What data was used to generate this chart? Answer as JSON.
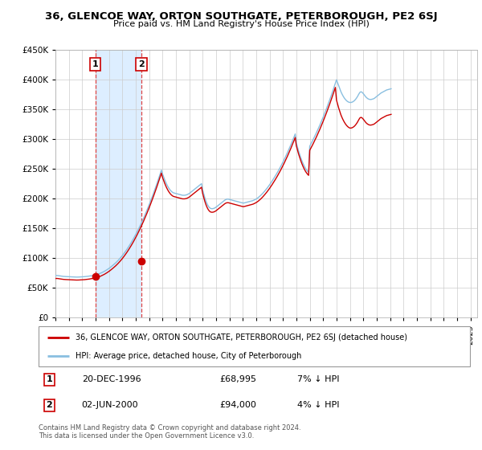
{
  "title": "36, GLENCOE WAY, ORTON SOUTHGATE, PETERBOROUGH, PE2 6SJ",
  "subtitle": "Price paid vs. HM Land Registry's House Price Index (HPI)",
  "legend_line1": "36, GLENCOE WAY, ORTON SOUTHGATE, PETERBOROUGH, PE2 6SJ (detached house)",
  "legend_line2": "HPI: Average price, detached house, City of Peterborough",
  "footer": "Contains HM Land Registry data © Crown copyright and database right 2024.\nThis data is licensed under the Open Government Licence v3.0.",
  "transaction1_date": "20-DEC-1996",
  "transaction1_price": "£68,995",
  "transaction1_hpi": "7% ↓ HPI",
  "transaction2_date": "02-JUN-2000",
  "transaction2_price": "£94,000",
  "transaction2_hpi": "4% ↓ HPI",
  "hpi_color": "#89bfe0",
  "price_color": "#cc0000",
  "marker_color": "#cc0000",
  "transaction1_x": 1996.97,
  "transaction1_y": 68995,
  "transaction2_x": 2000.42,
  "transaction2_y": 94000,
  "xlim": [
    1994.0,
    2025.5
  ],
  "ylim": [
    0,
    450000
  ],
  "yticks": [
    0,
    50000,
    100000,
    150000,
    200000,
    250000,
    300000,
    350000,
    400000,
    450000
  ],
  "xticks": [
    1994,
    1995,
    1996,
    1997,
    1998,
    1999,
    2000,
    2001,
    2002,
    2003,
    2004,
    2005,
    2006,
    2007,
    2008,
    2009,
    2010,
    2011,
    2012,
    2013,
    2014,
    2015,
    2016,
    2017,
    2018,
    2019,
    2020,
    2021,
    2022,
    2023,
    2024,
    2025
  ],
  "hpi_data_monthly": {
    "start_year": 1994.0,
    "step": 0.0833,
    "values": [
      70000,
      70200,
      70100,
      69800,
      69500,
      69200,
      68900,
      68700,
      68500,
      68400,
      68300,
      68200,
      68100,
      68000,
      67900,
      67800,
      67700,
      67600,
      67500,
      67500,
      67500,
      67600,
      67700,
      67800,
      67900,
      68000,
      68200,
      68400,
      68600,
      68800,
      69100,
      69400,
      69700,
      70000,
      70400,
      70800,
      71200,
      71700,
      72300,
      73000,
      73700,
      74500,
      75400,
      76300,
      77300,
      78400,
      79600,
      80800,
      82100,
      83500,
      85000,
      86500,
      88100,
      89700,
      91400,
      93200,
      95100,
      97100,
      99200,
      101400,
      103700,
      106100,
      108600,
      111200,
      113900,
      116700,
      119600,
      122600,
      125700,
      128900,
      132200,
      135600,
      139100,
      142700,
      146400,
      150200,
      154100,
      158100,
      162200,
      166400,
      170700,
      175100,
      179600,
      184200,
      188900,
      193700,
      198600,
      203600,
      208700,
      213900,
      219200,
      224600,
      230100,
      235700,
      241400,
      247200,
      241000,
      236000,
      231000,
      226500,
      222500,
      219000,
      216000,
      213500,
      211500,
      210000,
      209000,
      208500,
      208000,
      207500,
      207000,
      206500,
      206000,
      205500,
      205000,
      205000,
      205000,
      205500,
      206000,
      207000,
      208000,
      209500,
      211000,
      212500,
      214000,
      215500,
      217000,
      218500,
      220000,
      221500,
      223000,
      224500,
      214000,
      207000,
      200500,
      195000,
      190500,
      187000,
      184500,
      183000,
      182500,
      182500,
      183000,
      183800,
      185000,
      186500,
      188000,
      189500,
      191000,
      192500,
      194000,
      195500,
      197000,
      198000,
      198500,
      198500,
      198000,
      197500,
      197000,
      196500,
      196000,
      195500,
      195000,
      194500,
      194000,
      193500,
      193000,
      192500,
      192000,
      192000,
      192500,
      193000,
      193500,
      194000,
      194500,
      195000,
      195500,
      196000,
      196800,
      197700,
      198800,
      200000,
      201400,
      203000,
      204700,
      206500,
      208500,
      210600,
      212800,
      215100,
      217500,
      220000,
      222600,
      225300,
      228100,
      231000,
      234000,
      237000,
      240100,
      243300,
      246600,
      250000,
      253500,
      257100,
      260800,
      264600,
      268500,
      272500,
      276600,
      280800,
      285100,
      289500,
      294000,
      298600,
      303300,
      308100,
      293000,
      286000,
      279500,
      273500,
      268000,
      263000,
      258500,
      254500,
      251000,
      248000,
      245500,
      243500,
      287500,
      291000,
      294600,
      298300,
      302100,
      306000,
      310000,
      314100,
      318300,
      322600,
      327000,
      331500,
      336100,
      340800,
      345600,
      350500,
      355500,
      360600,
      365800,
      371100,
      376500,
      382000,
      387600,
      393300,
      399100,
      394000,
      388500,
      383500,
      379000,
      375000,
      371500,
      368500,
      366000,
      364000,
      362500,
      361500,
      361000,
      361000,
      361500,
      362500,
      364000,
      366000,
      368500,
      371500,
      375000,
      378000,
      379000,
      378000,
      376000,
      373500,
      371000,
      369000,
      367500,
      366500,
      366000,
      366000,
      366500,
      367000,
      368000,
      369500,
      371000,
      372500,
      374000,
      375500,
      377000,
      378000,
      379000,
      380000,
      381000,
      382000,
      382500,
      383000,
      383500,
      384000
    ]
  },
  "price_data_monthly": {
    "start_year": 1994.0,
    "step": 0.0833,
    "values": [
      65000,
      65200,
      65100,
      64800,
      64500,
      64200,
      63900,
      63700,
      63500,
      63400,
      63300,
      63200,
      63100,
      63000,
      62900,
      62800,
      62700,
      62600,
      62500,
      62500,
      62500,
      62600,
      62700,
      62800,
      62900,
      63000,
      63200,
      63400,
      63600,
      63800,
      64100,
      64400,
      64700,
      65000,
      65400,
      65800,
      66200,
      66700,
      67300,
      68000,
      68700,
      69500,
      70400,
      71300,
      72300,
      73400,
      74600,
      75800,
      77100,
      78500,
      80000,
      81500,
      83100,
      84700,
      86400,
      88200,
      90100,
      92100,
      94200,
      96400,
      98700,
      101100,
      103600,
      106200,
      108900,
      111700,
      114600,
      117600,
      120700,
      123900,
      127200,
      130600,
      134100,
      137700,
      141400,
      145200,
      149100,
      153100,
      157200,
      161400,
      165700,
      170100,
      174600,
      179200,
      183900,
      188700,
      193600,
      198600,
      203700,
      208900,
      214200,
      219600,
      225100,
      230700,
      236400,
      242200,
      235000,
      230000,
      225000,
      220500,
      216500,
      213000,
      210000,
      207500,
      205500,
      204000,
      203000,
      202500,
      202000,
      201500,
      201000,
      200500,
      200000,
      199500,
      199000,
      199000,
      199000,
      199500,
      200000,
      201000,
      202000,
      203500,
      205000,
      206500,
      208000,
      209500,
      211000,
      212500,
      214000,
      215500,
      217000,
      218500,
      208000,
      201000,
      194500,
      189000,
      184500,
      181000,
      178500,
      177000,
      176500,
      176500,
      177000,
      177800,
      179000,
      180500,
      182000,
      183500,
      185000,
      186500,
      188000,
      189500,
      191000,
      192000,
      192500,
      192500,
      192000,
      191500,
      191000,
      190500,
      190000,
      189500,
      189000,
      188500,
      188000,
      187500,
      187000,
      186500,
      186000,
      186000,
      186500,
      187000,
      187500,
      188000,
      188500,
      189000,
      189500,
      190000,
      190800,
      191700,
      192800,
      194000,
      195400,
      197000,
      198700,
      200500,
      202500,
      204600,
      206800,
      209100,
      211500,
      214000,
      216600,
      219300,
      222100,
      225000,
      228000,
      231000,
      234100,
      237300,
      240600,
      244000,
      247500,
      251100,
      254800,
      258600,
      262500,
      266500,
      270600,
      274800,
      279100,
      283500,
      288000,
      292600,
      297300,
      302100,
      288000,
      281000,
      274500,
      268500,
      263000,
      258000,
      253500,
      249500,
      246000,
      243000,
      240500,
      238500,
      280500,
      284000,
      287600,
      291300,
      295100,
      299000,
      303000,
      307100,
      311300,
      315600,
      320000,
      324500,
      329100,
      333800,
      338600,
      343500,
      348500,
      353600,
      358800,
      364100,
      369500,
      375000,
      380600,
      386300,
      365000,
      358000,
      351500,
      345500,
      340000,
      335500,
      331500,
      328000,
      325000,
      322500,
      320500,
      319000,
      318000,
      318000,
      318500,
      319500,
      321000,
      323000,
      325500,
      328500,
      332000,
      335000,
      336000,
      335000,
      333000,
      330500,
      328000,
      326000,
      324500,
      323500,
      323000,
      323000,
      323500,
      324000,
      325000,
      326500,
      328000,
      329500,
      331000,
      332500,
      334000,
      335000,
      336000,
      337000,
      338000,
      339000,
      339500,
      340000,
      340500,
      341000
    ]
  },
  "bg_color": "#ffffff",
  "grid_color": "#cccccc",
  "hatch_color": "#aaaaaa",
  "blue_fill_color": "#ddeeff"
}
